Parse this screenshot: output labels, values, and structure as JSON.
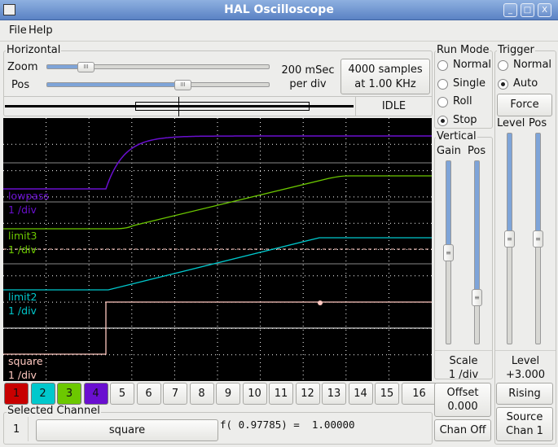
{
  "window": {
    "title": "HAL Oscilloscope",
    "buttons": [
      "_",
      "□",
      "X"
    ]
  },
  "menu": [
    "File",
    "Help"
  ],
  "horizontal": {
    "label": "Horizontal",
    "zoom_label": "Zoom",
    "pos_label": "Pos",
    "zoom_value": 0.15,
    "pos_value": 0.62,
    "rate_line1": "200 mSec",
    "rate_line2": "per div",
    "samples_line1": "4000 samples",
    "samples_line2": "at 1.00 KHz",
    "status": "IDLE"
  },
  "run_mode": {
    "label": "Run Mode",
    "options": [
      "Normal",
      "Single",
      "Roll",
      "Stop"
    ],
    "selected": "Stop"
  },
  "trigger": {
    "label": "Trigger",
    "options": [
      "Normal",
      "Auto"
    ],
    "selected": "Auto",
    "force": "Force",
    "level_label": "Level",
    "pos_label": "Pos",
    "level_slider": 0.5,
    "pos_slider": 0.5,
    "level_title": "Level",
    "level_value": "+3.000",
    "edge": "Rising",
    "source_line1": "Source",
    "source_line2": "Chan  1"
  },
  "vertical": {
    "label": "Vertical",
    "gain_label": "Gain",
    "pos_label": "Pos",
    "gain_slider": 0.5,
    "pos_slider": 0.77,
    "scale_title": "Scale",
    "scale_value": "1 /div",
    "offset_label": "Offset",
    "offset_value": "0.000",
    "chan_off": "Chan Off"
  },
  "scope": {
    "channels": [
      {
        "name": "lowpass",
        "scale": "1 /div",
        "color": "#6a0fd0"
      },
      {
        "name": "limit3",
        "scale": "1 /div",
        "color": "#6cc800"
      },
      {
        "name": "limit2",
        "scale": "1 /div",
        "color": "#00c8cc"
      },
      {
        "name": "square",
        "scale": "1 /div",
        "color": "#ffc8c0"
      }
    ]
  },
  "channel_buttons": [
    {
      "label": "1",
      "color": "#c80000"
    },
    {
      "label": "2",
      "color": "#00c8cc"
    },
    {
      "label": "3",
      "color": "#6cc800"
    },
    {
      "label": "4",
      "color": "#6a0fd0"
    },
    {
      "label": "5"
    },
    {
      "label": "6"
    },
    {
      "label": "7"
    },
    {
      "label": "8"
    },
    {
      "label": "9"
    },
    {
      "label": "10"
    },
    {
      "label": "11"
    },
    {
      "label": "12"
    },
    {
      "label": "13"
    },
    {
      "label": "14"
    },
    {
      "label": "15"
    },
    {
      "label": "16"
    }
  ],
  "selected_channel": {
    "label": "Selected Channel",
    "number": "1",
    "name": "square",
    "readout": "f( 0.97785) =  1.00000"
  }
}
